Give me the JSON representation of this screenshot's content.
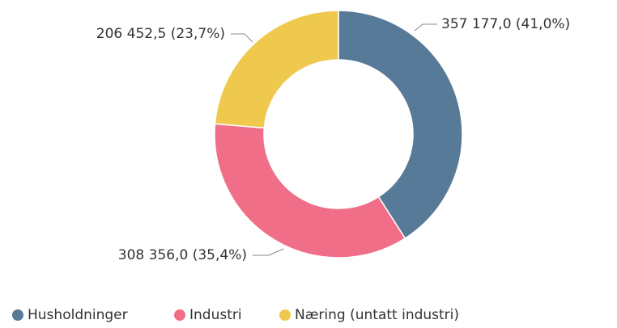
{
  "chart_data": {
    "type": "donut",
    "categories": [
      "Husholdninger",
      "Industri",
      "Næring (untatt industri)"
    ],
    "values": [
      357177.0,
      308356.0,
      206452.5
    ],
    "value_labels": [
      "357 177,0 (41,0%)",
      "308 356,0 (35,4%)",
      "206 452,5 (23,7%)"
    ],
    "colors": [
      "#587a99",
      "#f06e87",
      "#efc84e"
    ]
  }
}
